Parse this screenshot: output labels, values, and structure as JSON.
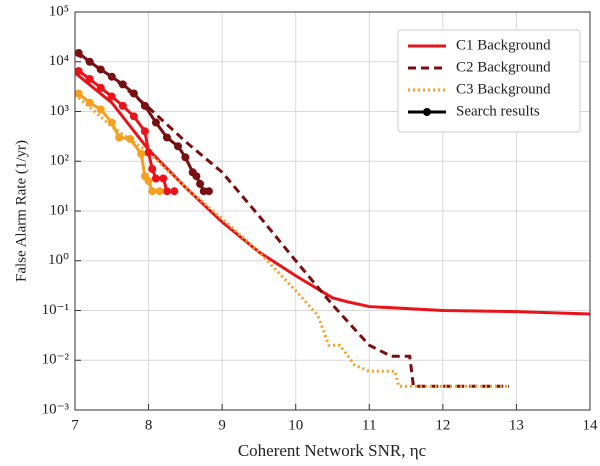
{
  "chart_data": {
    "type": "line",
    "xlabel": "Coherent Network SNR, ηc",
    "ylabel": "False Alarm Rate (1/yr)",
    "xlim": [
      7,
      14
    ],
    "xticks": [
      7,
      8,
      9,
      10,
      11,
      12,
      13,
      14
    ],
    "ylim": [
      0.001,
      100000
    ],
    "log_y": true,
    "yticks": [
      {
        "value": 0.001,
        "label": "10⁻³"
      },
      {
        "value": 0.01,
        "label": "10⁻²"
      },
      {
        "value": 0.1,
        "label": "10⁻¹"
      },
      {
        "value": 1,
        "label": "10⁰"
      },
      {
        "value": 10,
        "label": "10¹"
      },
      {
        "value": 100,
        "label": "10²"
      },
      {
        "value": 1000,
        "label": "10³"
      },
      {
        "value": 10000,
        "label": "10⁴"
      },
      {
        "value": 100000,
        "label": "10⁵"
      }
    ],
    "grid": true,
    "legend": "upper right",
    "series": [
      {
        "name": "C1 Background",
        "color": "#e8141a",
        "style": "solid",
        "x": [
          7,
          7.5,
          8,
          8.5,
          9,
          9.5,
          10,
          10.5,
          10.7,
          11,
          12,
          13,
          14
        ],
        "values": [
          6000,
          1500,
          170,
          30,
          6,
          1.5,
          0.5,
          0.18,
          0.15,
          0.12,
          0.1,
          0.095,
          0.085
        ]
      },
      {
        "name": "C2 Background",
        "color": "#7a0f12",
        "style": "dashed",
        "x": [
          7,
          7.5,
          8,
          8.5,
          9,
          9.5,
          10,
          10.5,
          11,
          11.3,
          11.55,
          11.6,
          12.9
        ],
        "values": [
          15000,
          5000,
          1200,
          250,
          60,
          8,
          1,
          0.13,
          0.02,
          0.012,
          0.012,
          0.003,
          0.003
        ]
      },
      {
        "name": "C3 Background",
        "color": "#f5a020",
        "style": "dotted",
        "x": [
          7,
          7.5,
          8,
          8.5,
          9,
          9.5,
          10,
          10.3,
          10.45,
          10.6,
          10.8,
          11,
          11.35,
          11.4,
          12.9
        ],
        "values": [
          2200,
          500,
          150,
          30,
          7,
          1.5,
          0.25,
          0.08,
          0.02,
          0.02,
          0.008,
          0.006,
          0.006,
          0.003,
          0.003
        ]
      }
    ],
    "search_results": {
      "name": "Search results",
      "color": "#000000",
      "curves": [
        {
          "color": "#e8141a",
          "x": [
            7.05,
            7.2,
            7.35,
            7.5,
            7.65,
            7.8,
            7.95,
            8.0,
            8.05,
            8.1,
            8.2,
            8.25,
            8.35
          ],
          "values": [
            6500,
            4500,
            3000,
            2000,
            1300,
            800,
            400,
            150,
            70,
            45,
            45,
            25,
            25
          ]
        },
        {
          "color": "#7a0f12",
          "x": [
            7.05,
            7.2,
            7.35,
            7.5,
            7.65,
            7.8,
            7.95,
            8.1,
            8.25,
            8.4,
            8.5,
            8.6,
            8.65,
            8.7,
            8.75,
            8.82
          ],
          "values": [
            15000,
            10000,
            7000,
            5000,
            3500,
            2300,
            1300,
            600,
            300,
            200,
            120,
            60,
            50,
            35,
            25,
            25
          ]
        },
        {
          "color": "#f5a020",
          "x": [
            7.05,
            7.2,
            7.35,
            7.5,
            7.6,
            7.75,
            7.9,
            7.95,
            8.0,
            8.05,
            8.15
          ],
          "values": [
            2300,
            1500,
            1100,
            600,
            300,
            280,
            140,
            50,
            40,
            25,
            25
          ]
        }
      ]
    }
  }
}
